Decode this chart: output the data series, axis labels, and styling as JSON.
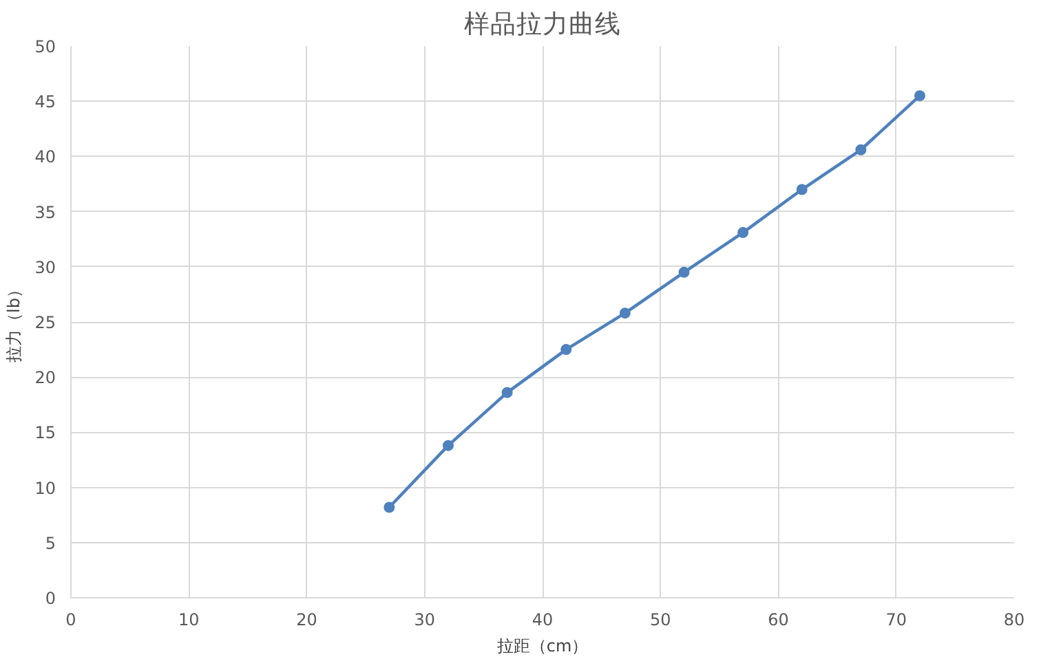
{
  "chart_data": {
    "type": "line",
    "title": "样品拉力曲线",
    "xlabel": "拉距（cm）",
    "ylabel": "拉力（lb）",
    "x": [
      27,
      32,
      37,
      42,
      47,
      52,
      57,
      62,
      67,
      72
    ],
    "series": [
      {
        "color": "#4f81bd",
        "values": [
          8.2,
          13.8,
          18.6,
          22.5,
          25.8,
          29.5,
          33.1,
          37.0,
          40.6,
          45.5
        ]
      }
    ],
    "xlim": [
      0,
      80
    ],
    "xticks": [
      0,
      10,
      20,
      30,
      40,
      50,
      60,
      70,
      80
    ],
    "ylim": [
      0,
      50
    ],
    "yticks": [
      0,
      5,
      10,
      15,
      20,
      25,
      30,
      35,
      40,
      45,
      50
    ],
    "grid": true,
    "marker": "circle",
    "line_style": "solid"
  }
}
